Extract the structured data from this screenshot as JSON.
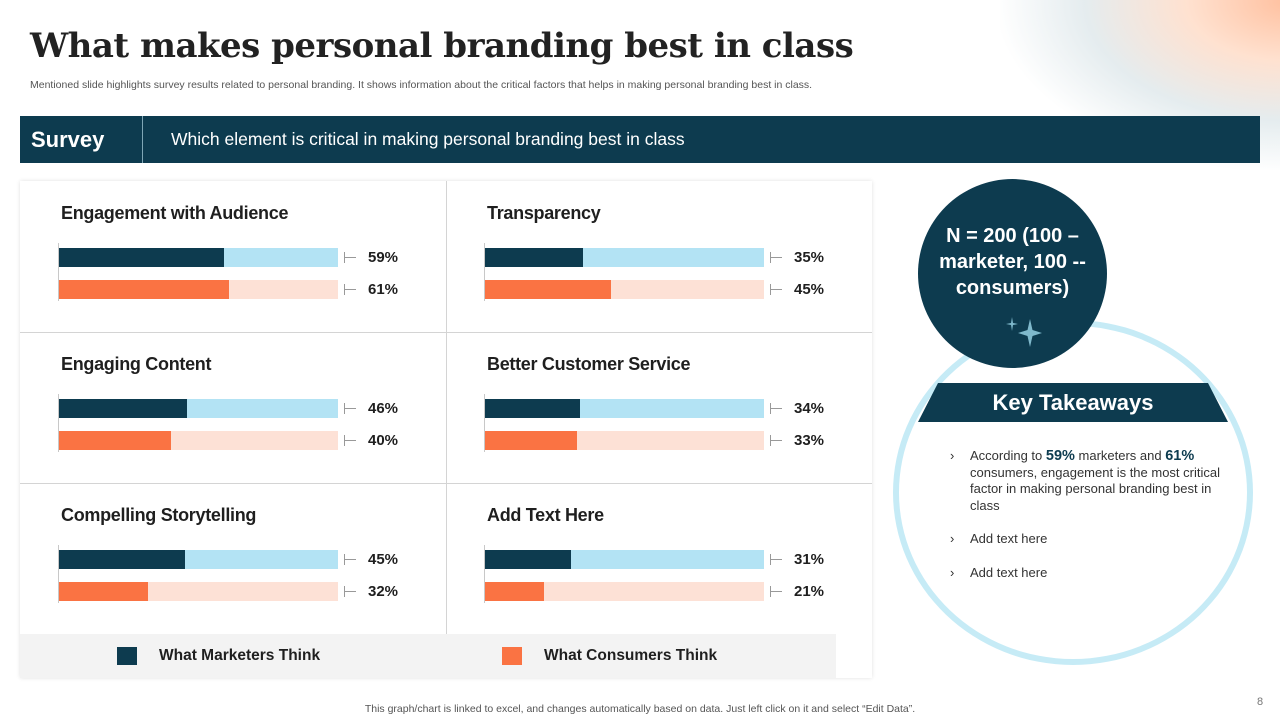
{
  "title": "What makes personal branding best in class",
  "subtitle": "Mentioned slide highlights survey results related to personal branding. It shows information about the critical factors that helps in making personal branding best in class.",
  "survey": {
    "label": "Survey",
    "question": "Which element is critical in making personal branding best in class"
  },
  "colors": {
    "marketers": "#0d3b4f",
    "marketers_track": "#b3e3f4",
    "consumers": "#fa7343",
    "consumers_track": "#fde1d6"
  },
  "chart_data": {
    "type": "bar",
    "orientation": "horizontal",
    "xlim": [
      0,
      100
    ],
    "series": [
      {
        "name": "What Marketers Think"
      },
      {
        "name": "What Consumers Think"
      }
    ],
    "categories": [
      {
        "label": "Engagement with Audience",
        "marketers": 59,
        "consumers": 61,
        "marketers_label": "59%",
        "consumers_label": "61%"
      },
      {
        "label": "Transparency",
        "marketers": 35,
        "consumers": 45,
        "marketers_label": "35%",
        "consumers_label": "45%"
      },
      {
        "label": "Engaging Content",
        "marketers": 46,
        "consumers": 40,
        "marketers_label": "46%",
        "consumers_label": "40%"
      },
      {
        "label": "Better Customer Service",
        "marketers": 34,
        "consumers": 33,
        "marketers_label": "34%",
        "consumers_label": "33%"
      },
      {
        "label": "Compelling Storytelling",
        "marketers": 45,
        "consumers": 32,
        "marketers_label": "45%",
        "consumers_label": "32%"
      },
      {
        "label": "Add Text Here",
        "marketers": 31,
        "consumers": 21,
        "marketers_label": "31%",
        "consumers_label": "21%"
      }
    ]
  },
  "sample": {
    "text": "N = 200 (100 – marketer, 100 -- consumers)"
  },
  "takeaways": {
    "title": "Key Takeaways",
    "item1": {
      "pre": "According to ",
      "val1": "59%",
      "mid": " marketers and ",
      "val2": "61%",
      "post": " consumers, engagement is the most critical factor in making personal branding best in class"
    },
    "item2": "Add text here",
    "item3": "Add text here"
  },
  "footer": "This graph/chart is linked to excel, and changes automatically based on data. Just left click on it and select “Edit Data”.",
  "page_number": "8"
}
